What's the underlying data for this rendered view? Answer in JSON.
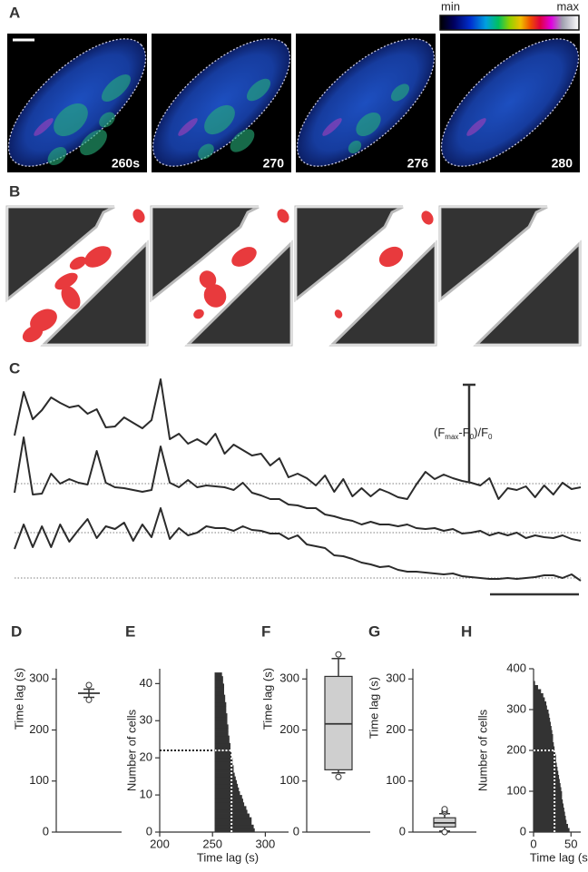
{
  "figure_a": {
    "label": "A",
    "colorbar": {
      "min": "min",
      "max": "max"
    },
    "times": [
      "260s",
      "270",
      "276",
      "280"
    ]
  },
  "figure_b": {
    "label": "B"
  },
  "chart_data": [
    {
      "type": "line",
      "label": "C",
      "scale_label": [
        "(F",
        "max",
        "-F",
        "0",
        ")/F",
        "0"
      ],
      "series": [
        {
          "color": "#2b2b2b",
          "values": [
            53,
            101,
            71,
            81,
            95,
            89,
            84,
            86,
            77,
            82,
            62,
            63,
            73,
            67,
            61,
            70,
            115,
            49,
            55,
            44,
            49,
            43,
            55,
            33,
            43,
            37,
            31,
            33,
            20,
            28,
            7,
            11,
            6,
            -2,
            9,
            -9,
            5,
            -14,
            -5,
            -14,
            -6,
            -10,
            -15,
            -17,
            -1,
            13,
            5,
            10,
            6,
            3,
            1,
            -2,
            6,
            -17,
            -5,
            -7,
            -3,
            -15,
            -2,
            -12,
            1,
            -6,
            -4
          ]
        },
        {
          "color": "#2b2b2b",
          "values": [
            44,
            105,
            42,
            43,
            65,
            54,
            59,
            55,
            53,
            90,
            55,
            50,
            49,
            47,
            45,
            47,
            95,
            55,
            50,
            58,
            50,
            52,
            51,
            50,
            47,
            55,
            44,
            41,
            37,
            37,
            31,
            30,
            27,
            27,
            20,
            18,
            15,
            13,
            9,
            12,
            9,
            9,
            7,
            9,
            5,
            4,
            5,
            2,
            4,
            -1,
            0,
            2,
            -3,
            0,
            -3,
            0,
            -6,
            -3,
            -5,
            -6,
            -3,
            -7,
            -9
          ]
        },
        {
          "color": "#2b2b2b",
          "values": [
            32,
            59,
            34,
            57,
            34,
            59,
            40,
            53,
            65,
            44,
            57,
            54,
            61,
            41,
            59,
            45,
            77,
            43,
            55,
            47,
            50,
            57,
            55,
            55,
            52,
            57,
            53,
            52,
            49,
            49,
            43,
            47,
            37,
            35,
            33,
            25,
            24,
            21,
            17,
            15,
            12,
            13,
            9,
            7,
            7,
            6,
            5,
            4,
            5,
            2,
            1,
            0,
            -1,
            -1,
            0,
            -1,
            0,
            1,
            3,
            3,
            0,
            4,
            -3
          ]
        }
      ]
    },
    {
      "type": "box",
      "label": "D",
      "ylabel": "Time lag (s)",
      "ylim": [
        0,
        320
      ],
      "yticks": [
        0,
        100,
        200,
        300
      ],
      "whisker_low": 264,
      "median": 272,
      "whisker_high": 280,
      "outliers": [
        259,
        288
      ]
    },
    {
      "type": "hbar",
      "label": "E",
      "xlabel": "Time lag (s)",
      "ylabel": "Number of cells",
      "color": "#333333",
      "xlim": [
        200,
        322
      ],
      "xticks": [
        200,
        250,
        300
      ],
      "ylim": [
        0,
        44
      ],
      "yticks": [
        0,
        10,
        20,
        30,
        40
      ],
      "base": 252,
      "cells": [
        1,
        2,
        3,
        4,
        5,
        6,
        7,
        8,
        9,
        10,
        11,
        12,
        13,
        14,
        15,
        16,
        17,
        18,
        19,
        20,
        21,
        22,
        23,
        24,
        25,
        26,
        27,
        28,
        29,
        30,
        31,
        32,
        33,
        34,
        35,
        36,
        37,
        38,
        39,
        40,
        41,
        42,
        43
      ],
      "values": [
        290,
        289,
        287,
        287,
        285,
        283,
        282,
        280,
        279,
        278,
        276,
        275,
        274,
        273,
        272,
        271,
        270,
        270,
        269,
        269,
        268,
        268,
        267,
        267,
        266,
        266,
        265,
        265,
        265,
        264,
        264,
        264,
        263,
        263,
        263,
        262,
        262,
        261,
        261,
        261,
        260,
        260,
        259
      ],
      "median_line": {
        "x": 268,
        "y": 22
      }
    },
    {
      "type": "box",
      "label": "F",
      "ylabel": "Time lag (s)",
      "ylim": [
        0,
        320
      ],
      "yticks": [
        0,
        100,
        200,
        300
      ],
      "whisker_low": 116,
      "q1": 122,
      "median": 212,
      "q3": 305,
      "whisker_high": 340,
      "outliers": [
        108,
        348
      ]
    },
    {
      "type": "box",
      "label": "G",
      "ylabel": "Time lag (s)",
      "ylim": [
        0,
        320
      ],
      "yticks": [
        0,
        100,
        200,
        300
      ],
      "whisker_low": 2,
      "q1": 10,
      "median": 18,
      "q3": 28,
      "whisker_high": 36,
      "outliers": [
        0,
        39,
        42,
        45
      ]
    },
    {
      "type": "hbar",
      "label": "H",
      "xlabel": "Time lag (s)",
      "ylabel": "Number of cells",
      "color": "#333333",
      "xlim": [
        0,
        63
      ],
      "xticks": [
        0,
        50
      ],
      "ylim": [
        0,
        400
      ],
      "yticks": [
        0,
        100,
        200,
        300,
        400
      ],
      "cells": [
        10,
        20,
        30,
        40,
        50,
        60,
        70,
        80,
        90,
        100,
        110,
        120,
        130,
        140,
        150,
        160,
        170,
        180,
        190,
        200,
        210,
        220,
        230,
        240,
        250,
        260,
        270,
        280,
        290,
        300,
        310,
        320,
        330,
        340,
        350,
        360,
        370
      ],
      "values": [
        48,
        46,
        44,
        43,
        42,
        41,
        40,
        39,
        38,
        38,
        37,
        36,
        35,
        34,
        33,
        32,
        31,
        30,
        30,
        29,
        28,
        27,
        26,
        26,
        25,
        24,
        23,
        22,
        21,
        20,
        18,
        17,
        15,
        13,
        10,
        6,
        2
      ],
      "median_line": {
        "x": 28,
        "y": 200
      }
    }
  ]
}
